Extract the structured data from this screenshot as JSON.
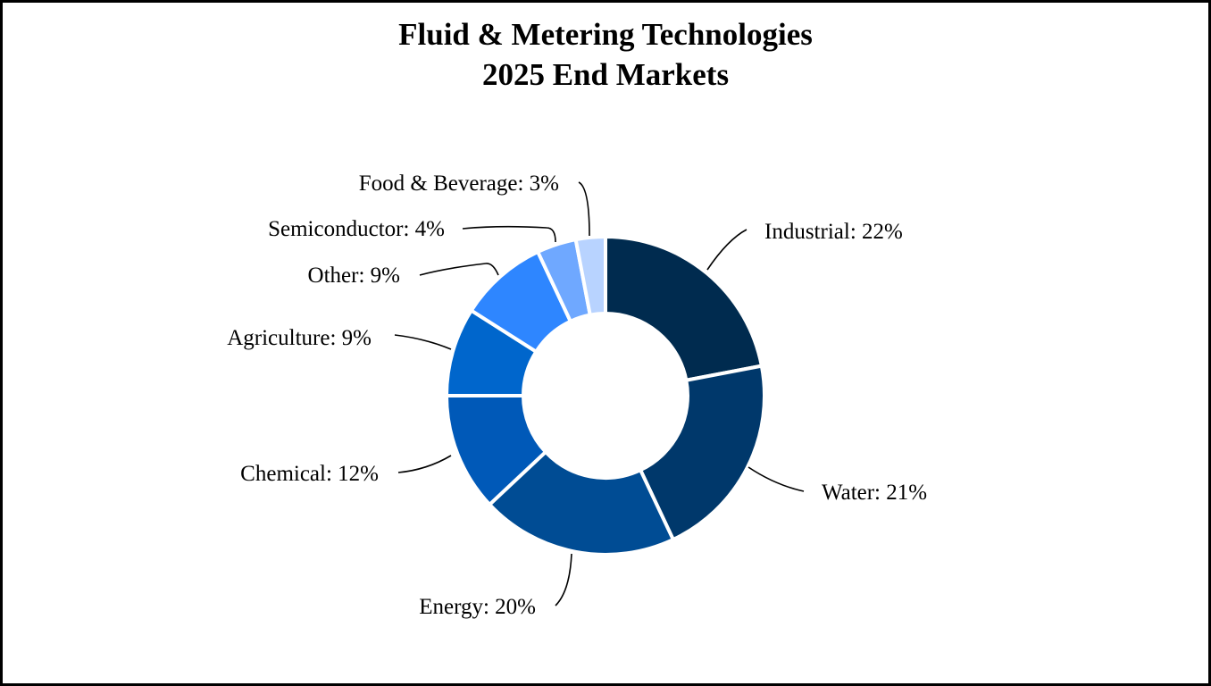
{
  "chart_data": {
    "type": "pie",
    "donut": true,
    "title": [
      "Fluid & Metering Technologies",
      "2025 End Markets"
    ],
    "legend": "none",
    "slices": [
      {
        "label": "Industrial: 22%",
        "name": "Industrial",
        "value": 22,
        "color": "#002B4F"
      },
      {
        "label": "Water: 21%",
        "name": "Water",
        "value": 21,
        "color": "#00386B"
      },
      {
        "label": "Energy: 20%",
        "name": "Energy",
        "value": 20,
        "color": "#004C94"
      },
      {
        "label": "Chemical: 12%",
        "name": "Chemical",
        "value": 12,
        "color": "#0059B8"
      },
      {
        "label": "Agriculture: 9%",
        "name": "Agriculture",
        "value": 9,
        "color": "#0066CC"
      },
      {
        "label": "Other: 9%",
        "name": "Other",
        "value": 9,
        "color": "#2E86FF"
      },
      {
        "label": "Semiconductor: 4%",
        "name": "Semiconductor",
        "value": 4,
        "color": "#6FA8FF"
      },
      {
        "label": "Food & Beverage: 3%",
        "name": "Food & Beverage",
        "value": 3,
        "color": "#B8D3FF"
      }
    ]
  }
}
